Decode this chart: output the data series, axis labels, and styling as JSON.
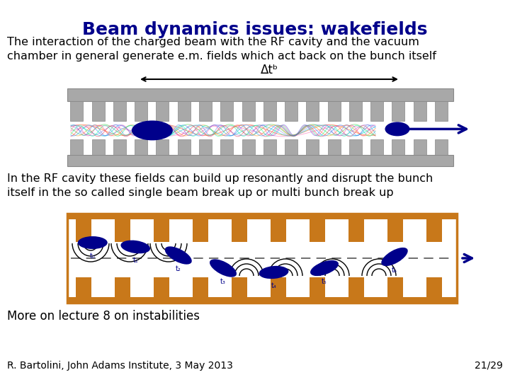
{
  "title": "Beam dynamics issues: wakefields",
  "title_color": "#00008B",
  "title_fontsize": 18,
  "bg_color": "#FFFFFF",
  "text1": "The interaction of the charged beam with the RF cavity and the vacuum\nchamber in general generate e.m. fields which act back on the bunch itself",
  "text1_fontsize": 11.5,
  "delta_label": "Δtᵇ",
  "text2": "In the RF cavity these fields can build up resonantly and disrupt the bunch\nitself in the so called single beam break up or multi bunch break up",
  "text2_fontsize": 11.5,
  "text3": "More on lecture 8 on instabilities",
  "text3_fontsize": 12,
  "footer_left": "R. Bartolini, John Adams Institute, 3 May 2013",
  "footer_right": "21/29",
  "footer_fontsize": 10,
  "cavity_gray": "#A8A8A8",
  "cavity_gray_dark": "#888888",
  "cavity_orange": "#C8781A",
  "beam_color": "#00008B"
}
